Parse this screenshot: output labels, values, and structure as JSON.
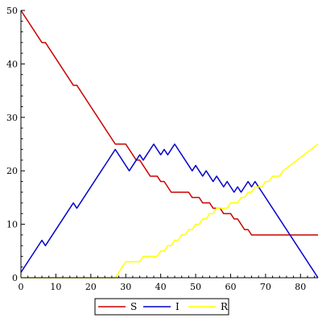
{
  "chart_data": {
    "type": "line",
    "xlim": [
      0,
      85
    ],
    "ylim": [
      0,
      50
    ],
    "x_ticks": [
      "0",
      "10",
      "20",
      "30",
      "40",
      "50",
      "60",
      "70",
      "80"
    ],
    "y_ticks": [
      "0",
      "10",
      "20",
      "30",
      "40",
      "50"
    ],
    "grid": false,
    "legend_position": "bottom",
    "series": [
      {
        "name": "S",
        "color": "#cc0000",
        "points": [
          [
            0,
            50
          ],
          [
            6,
            44
          ],
          [
            7,
            44
          ],
          [
            15,
            36
          ],
          [
            16,
            36
          ],
          [
            27,
            25
          ],
          [
            30,
            25
          ],
          [
            33,
            22
          ],
          [
            34,
            22
          ],
          [
            37,
            19
          ],
          [
            39,
            19
          ],
          [
            40,
            18
          ],
          [
            41,
            18
          ],
          [
            43,
            16
          ],
          [
            48,
            16
          ],
          [
            49,
            15
          ],
          [
            51,
            15
          ],
          [
            52,
            14
          ],
          [
            54,
            14
          ],
          [
            55,
            13
          ],
          [
            57,
            13
          ],
          [
            58,
            12
          ],
          [
            60,
            12
          ],
          [
            61,
            11
          ],
          [
            62,
            11
          ],
          [
            64,
            9
          ],
          [
            65,
            9
          ],
          [
            66,
            8
          ],
          [
            85,
            8
          ]
        ]
      },
      {
        "name": "I",
        "color": "#0000cc",
        "points": [
          [
            0,
            1
          ],
          [
            6,
            7
          ],
          [
            7,
            6
          ],
          [
            15,
            14
          ],
          [
            16,
            13
          ],
          [
            27,
            24
          ],
          [
            31,
            20
          ],
          [
            34,
            23
          ],
          [
            35,
            22
          ],
          [
            38,
            25
          ],
          [
            40,
            23
          ],
          [
            41,
            24
          ],
          [
            42,
            23
          ],
          [
            44,
            25
          ],
          [
            49,
            20
          ],
          [
            50,
            21
          ],
          [
            52,
            19
          ],
          [
            53,
            20
          ],
          [
            55,
            18
          ],
          [
            56,
            19
          ],
          [
            58,
            17
          ],
          [
            59,
            18
          ],
          [
            61,
            16
          ],
          [
            62,
            17
          ],
          [
            63,
            16
          ],
          [
            65,
            18
          ],
          [
            66,
            17
          ],
          [
            67,
            18
          ],
          [
            85,
            0
          ]
        ]
      },
      {
        "name": "R",
        "color": "#ffff00",
        "points": [
          [
            0,
            0
          ],
          [
            27,
            0
          ],
          [
            30,
            3
          ],
          [
            34,
            3
          ],
          [
            35,
            4
          ],
          [
            39,
            4
          ],
          [
            40,
            5
          ],
          [
            41,
            5
          ],
          [
            42,
            6
          ],
          [
            43,
            6
          ],
          [
            44,
            7
          ],
          [
            45,
            7
          ],
          [
            46,
            8
          ],
          [
            47,
            8
          ],
          [
            48,
            9
          ],
          [
            49,
            9
          ],
          [
            50,
            10
          ],
          [
            51,
            10
          ],
          [
            52,
            11
          ],
          [
            53,
            11
          ],
          [
            54,
            12
          ],
          [
            55,
            12
          ],
          [
            56,
            13
          ],
          [
            59,
            13
          ],
          [
            60,
            14
          ],
          [
            62,
            14
          ],
          [
            63,
            15
          ],
          [
            64,
            15
          ],
          [
            65,
            16
          ],
          [
            66,
            16
          ],
          [
            67,
            17
          ],
          [
            69,
            17
          ],
          [
            70,
            18
          ],
          [
            71,
            18
          ],
          [
            72,
            19
          ],
          [
            74,
            19
          ],
          [
            75,
            20
          ],
          [
            85,
            25
          ]
        ]
      }
    ]
  }
}
